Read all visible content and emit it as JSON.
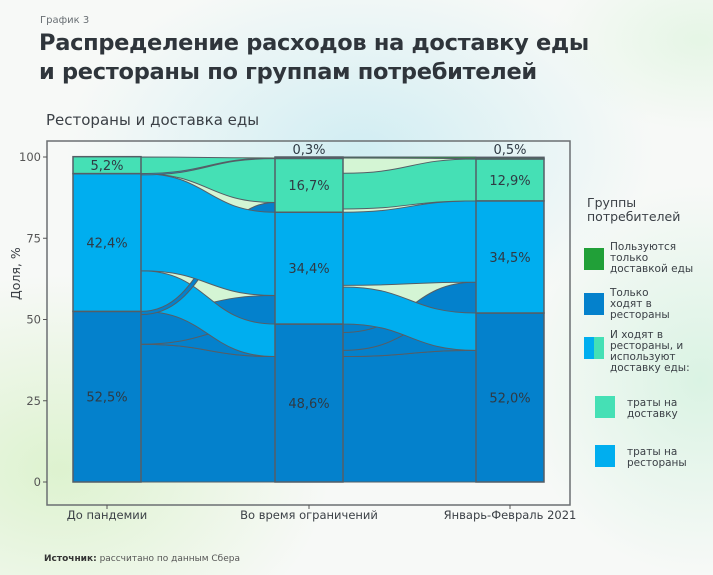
{
  "header": {
    "kicker": "График 3",
    "title": "Распределение расходов на доставку еды и рестораны по группам потребителей"
  },
  "footer": {
    "source_label": "Источник:",
    "source_text": "рассчитано по данным Сбера"
  },
  "chart_data": {
    "type": "alluvial",
    "title": "Рестораны и доставка еды",
    "xlabel": "",
    "ylabel": "Доля, %",
    "ylim": [
      0,
      100
    ],
    "yticks": [
      0,
      25,
      50,
      75,
      100
    ],
    "categories": [
      "До пандемии",
      "Во время ограничений",
      "Январь-Февраль 2021"
    ],
    "series": [
      {
        "name": "Только ходят в рестораны",
        "key": "rest_only",
        "color": "#0481CC",
        "values": [
          52.5,
          48.6,
          52.0
        ]
      },
      {
        "name": "траты на рестораны",
        "key": "mixed_rest",
        "color": "#00AEEF",
        "values": [
          42.4,
          34.4,
          34.5
        ]
      },
      {
        "name": "траты на доставку",
        "key": "mixed_deliv",
        "color": "#45E0B5",
        "values": [
          5.2,
          16.7,
          12.9
        ]
      },
      {
        "name": "Пользуются только доставкой еды",
        "key": "deliv_only",
        "color": "#21A038",
        "values": [
          0.0,
          0.3,
          0.5
        ]
      }
    ],
    "data_labels": [
      [
        "52,5%",
        "42,4%",
        "5,2%",
        ""
      ],
      [
        "48,6%",
        "34,4%",
        "16,7%",
        "0,3%"
      ],
      [
        "52,0%",
        "34,5%",
        "12,9%",
        "0,5%"
      ]
    ],
    "flow_fill_color": "#D4F5D4",
    "legend": {
      "title": "Группы потребителей",
      "position": "right",
      "items": [
        {
          "label": "Пользуются только доставкой еды",
          "color": "#21A038"
        },
        {
          "label": "Только ходят в рестораны",
          "color": "#0481CC"
        },
        {
          "label": "И ходят в рестораны, и используют доставку еды:",
          "colors": [
            "#00AEEF",
            "#45E0B5"
          ]
        },
        {
          "label": "траты на доставку",
          "color": "#45E0B5"
        },
        {
          "label": "траты на рестораны",
          "color": "#00AEEF"
        }
      ]
    }
  }
}
